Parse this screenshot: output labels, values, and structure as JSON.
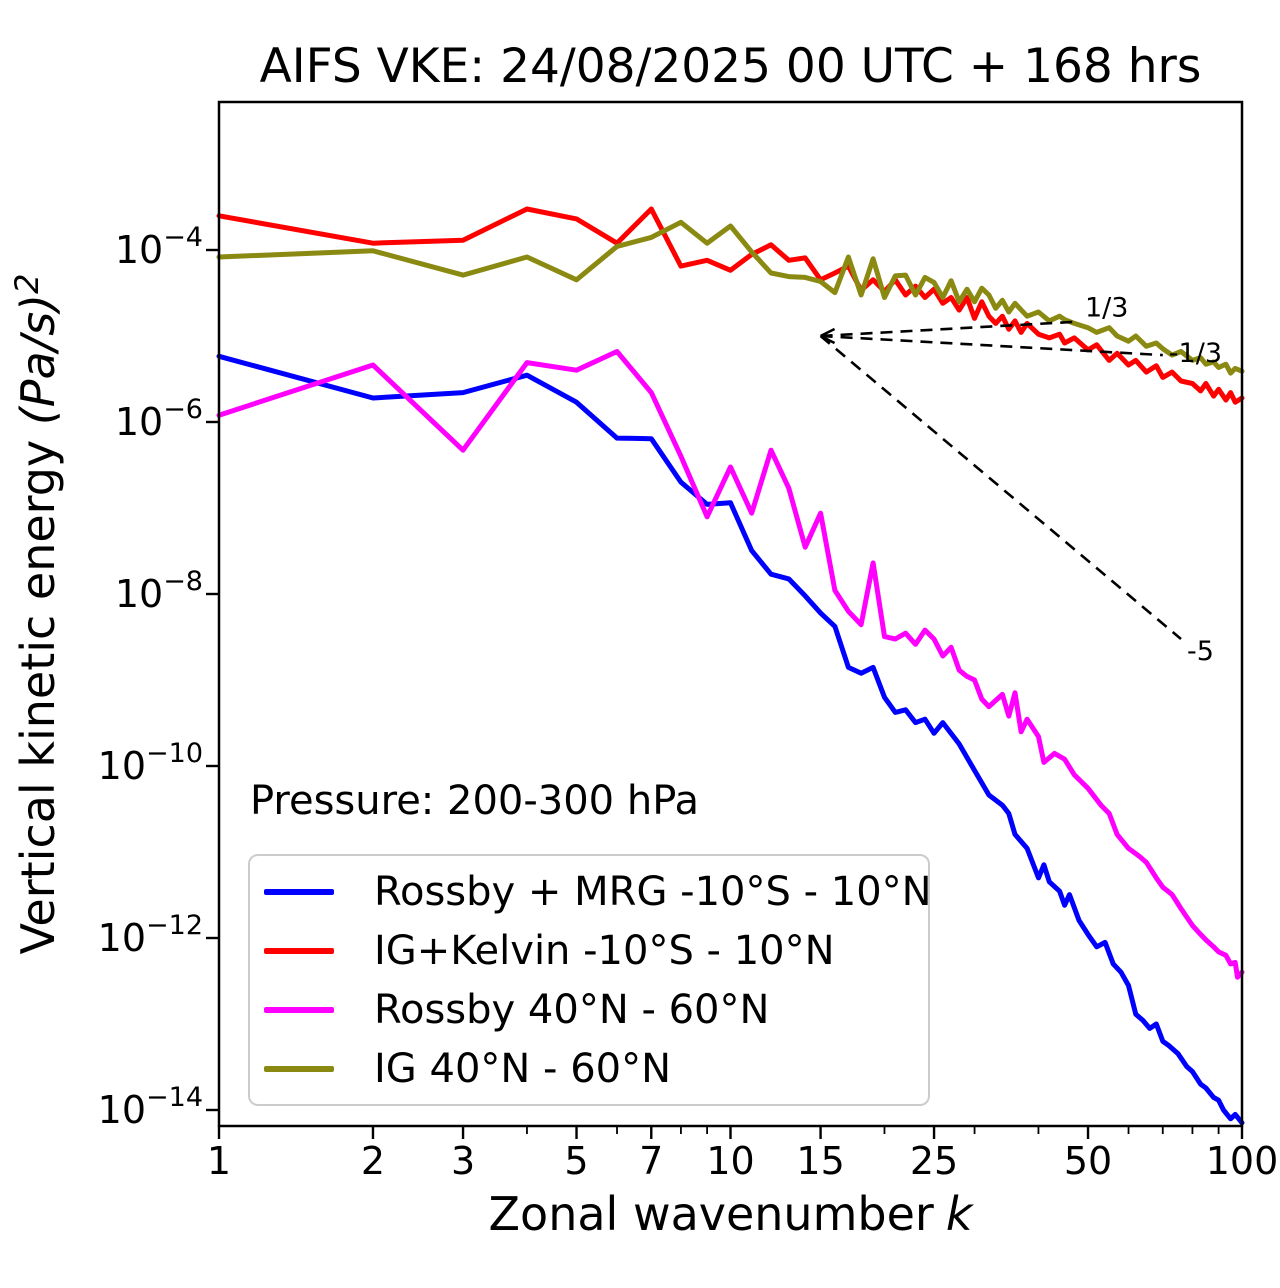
{
  "chart_data": {
    "type": "line",
    "title": "AIFS VKE: 24/08/2025 00 UTC + 168 hrs",
    "xlabel": {
      "text": "Zonal wavenumber",
      "symbol": "k"
    },
    "ylabel": {
      "text": "Vertical kinetic energy ",
      "math": "(Pa/s)",
      "exponent": "2"
    },
    "xscale": "log",
    "yscale": "log",
    "xlim": [
      1,
      100
    ],
    "ylim": [
      5e-15,
      0.005
    ],
    "grid": false,
    "legend_position": "lower-left",
    "x_ticks": [
      1,
      2,
      3,
      5,
      7,
      10,
      15,
      25,
      50,
      100
    ],
    "x_minor_ticks": [
      4,
      6,
      8,
      9,
      20,
      30,
      40,
      60,
      70,
      80,
      90
    ],
    "y_tick_exponents": [
      -4,
      -6,
      -8,
      -10,
      -12,
      -14
    ],
    "annotations": {
      "pressure_label": "Pressure: 200-300 hPa",
      "reference_slopes": [
        {
          "label": "1/3",
          "k": [
            15,
            48
          ],
          "value": [
            1e-05,
            1.47e-05
          ]
        },
        {
          "label": "-1/3",
          "k": [
            15,
            70
          ],
          "value": [
            1e-05,
            6e-06
          ]
        },
        {
          "label": "-5",
          "k": [
            15,
            76
          ],
          "value": [
            1e-05,
            3e-09
          ]
        }
      ]
    },
    "series": [
      {
        "name": "Rossby + MRG -10°S - 10°N",
        "color": "#0000ff",
        "x": [
          1,
          2,
          3,
          4,
          5,
          6,
          7,
          8,
          9,
          10,
          11,
          12,
          13,
          14,
          15,
          16,
          17,
          18,
          19,
          20,
          21,
          22,
          23,
          24,
          25,
          26,
          28,
          30,
          32,
          34,
          35,
          36,
          38,
          40,
          41,
          42,
          44,
          45,
          46,
          48,
          50,
          52,
          54,
          56,
          58,
          60,
          62,
          64,
          66,
          68,
          70,
          72,
          75,
          78,
          80,
          83,
          85,
          88,
          90,
          92,
          95,
          97,
          100
        ],
        "y": [
          5.8e-06,
          1.9e-06,
          2.2e-06,
          3.5e-06,
          1.7e-06,
          6.5e-07,
          6.4e-07,
          2e-07,
          1.1e-07,
          1.15e-07,
          3.2e-08,
          1.7e-08,
          1.5e-08,
          9.5e-09,
          6e-09,
          4.2e-09,
          1.4e-09,
          1.2e-09,
          1.4e-09,
          6.3e-10,
          4.2e-10,
          4.5e-10,
          3.2e-10,
          3.5e-10,
          2.4e-10,
          3.2e-10,
          1.8e-10,
          8.9e-11,
          4.6e-11,
          3.5e-11,
          2.8e-11,
          1.6e-11,
          1.1e-11,
          5e-12,
          7.1e-12,
          4.5e-12,
          3.5e-12,
          2.4e-12,
          3.2e-12,
          1.6e-12,
          1.1e-12,
          7.9e-13,
          8.9e-13,
          5e-13,
          4e-13,
          2.8e-13,
          1.3e-13,
          1.1e-13,
          8.9e-14,
          1e-13,
          6.3e-14,
          5.6e-14,
          4.5e-14,
          3.2e-14,
          2.8e-14,
          2e-14,
          1.8e-14,
          1.4e-14,
          1.3e-14,
          1e-14,
          7.9e-15,
          8.9e-15,
          7.1e-15
        ]
      },
      {
        "name": "IG+Kelvin -10°S - 10°N",
        "color": "#ff0000",
        "x": [
          1,
          2,
          3,
          4,
          5,
          6,
          7,
          8,
          9,
          10,
          11,
          12,
          13,
          14,
          15,
          16,
          17,
          18,
          19,
          20,
          21,
          22,
          23,
          24,
          25,
          26,
          27,
          28,
          29,
          30,
          31,
          32,
          33,
          34,
          35,
          36,
          37,
          38,
          40,
          42,
          44,
          45,
          47,
          50,
          52,
          55,
          57,
          60,
          62,
          65,
          68,
          70,
          73,
          76,
          80,
          83,
          85,
          88,
          90,
          93,
          95,
          97,
          100
        ],
        "y": [
          0.00025,
          0.00012,
          0.00013,
          0.0003,
          0.00023,
          0.00012,
          0.0003,
          6.5e-05,
          7.6e-05,
          5.8e-05,
          8.9e-05,
          0.000115,
          7.6e-05,
          8.1e-05,
          4.5e-05,
          5.4e-05,
          6.5e-05,
          3.4e-05,
          4.5e-05,
          3.3e-05,
          4.5e-05,
          3e-05,
          3.8e-05,
          2.8e-05,
          3.5e-05,
          2.4e-05,
          2.8e-05,
          2e-05,
          2.8e-05,
          1.6e-05,
          2.5e-05,
          1.7e-05,
          1.4e-05,
          1.7e-05,
          1.2e-05,
          1.5e-05,
          1.1e-05,
          1.4e-05,
          1.05e-05,
          9.5e-06,
          1.05e-05,
          8.3e-06,
          9.5e-06,
          6.9e-06,
          7.9e-06,
          5.2e-06,
          6.3e-06,
          4.6e-06,
          5.2e-06,
          3.8e-06,
          4.5e-06,
          3.3e-06,
          3.8e-06,
          3e-06,
          2.8e-06,
          2.3e-06,
          2.8e-06,
          2e-06,
          2.4e-06,
          1.8e-06,
          2.2e-06,
          1.7e-06,
          1.9e-06
        ]
      },
      {
        "name": "Rossby 40°N - 60°N",
        "color": "#ff00ff",
        "x": [
          1,
          2,
          3,
          4,
          5,
          6,
          7,
          8,
          9,
          10,
          11,
          12,
          13,
          14,
          15,
          16,
          17,
          18,
          19,
          20,
          21,
          22,
          23,
          24,
          25,
          26,
          27,
          28,
          29,
          30,
          31,
          32,
          34,
          35,
          36,
          37,
          38,
          40,
          41,
          43,
          45,
          47,
          50,
          53,
          55,
          57,
          60,
          63,
          65,
          68,
          70,
          73,
          76,
          80,
          83,
          85,
          88,
          90,
          93,
          95,
          97,
          98,
          100
        ],
        "y": [
          1.2e-06,
          4.6e-06,
          4.7e-07,
          4.9e-06,
          4e-06,
          6.6e-06,
          2.2e-06,
          4e-07,
          7.9e-08,
          3e-07,
          8.7e-08,
          4.7e-07,
          1.7e-07,
          3.5e-08,
          8.7e-08,
          1.1e-08,
          6.3e-09,
          4.4e-09,
          2.3e-08,
          3.2e-09,
          3e-09,
          3.5e-09,
          2.6e-09,
          3.8e-09,
          3e-09,
          1.9e-09,
          2.4e-09,
          1.3e-09,
          1.1e-09,
          1e-09,
          6e-10,
          4.9e-10,
          6.8e-10,
          3.8e-10,
          7.1e-10,
          2.5e-10,
          3.5e-10,
          2.2e-10,
          1.1e-10,
          1.4e-10,
          1.2e-10,
          7.9e-11,
          5.5e-11,
          3.5e-11,
          2.8e-11,
          1.6e-11,
          1.1e-11,
          8.9e-12,
          7.6e-12,
          5e-12,
          3.9e-12,
          3.2e-12,
          2.2e-12,
          1.4e-12,
          1.1e-12,
          9.5e-13,
          7.9e-13,
          6.9e-13,
          6.3e-13,
          5e-13,
          5.2e-13,
          3.5e-13,
          4e-13
        ]
      },
      {
        "name": "IG 40°N - 60°N",
        "color": "#8a8a12",
        "x": [
          1,
          2,
          3,
          4,
          5,
          6,
          7,
          8,
          9,
          10,
          11,
          12,
          13,
          14,
          15,
          16,
          17,
          18,
          19,
          20,
          21,
          22,
          23,
          24,
          25,
          26,
          27,
          28,
          29,
          30,
          31,
          32,
          33,
          34,
          35,
          36,
          38,
          40,
          42,
          44,
          45,
          47,
          50,
          52,
          55,
          57,
          60,
          62,
          65,
          68,
          70,
          73,
          76,
          80,
          83,
          85,
          88,
          90,
          93,
          95,
          97,
          100
        ],
        "y": [
          8.3e-05,
          9.8e-05,
          5.1e-05,
          8.3e-05,
          4.5e-05,
          0.00011,
          0.00014,
          0.00021,
          0.00012,
          0.00019,
          9.5e-05,
          5.4e-05,
          4.9e-05,
          4.8e-05,
          4.3e-05,
          3.2e-05,
          8.3e-05,
          3e-05,
          7.9e-05,
          2.8e-05,
          5e-05,
          5.1e-05,
          3e-05,
          4.8e-05,
          4.2e-05,
          2.8e-05,
          4.4e-05,
          2.5e-05,
          3.5e-05,
          2.5e-05,
          3.6e-05,
          3e-05,
          2.1e-05,
          2.6e-05,
          1.9e-05,
          2.4e-05,
          1.7e-05,
          1.9e-05,
          1.5e-05,
          1.7e-05,
          1.55e-05,
          1.4e-05,
          1.25e-05,
          1.1e-05,
          1.25e-05,
          1e-05,
          8.7e-06,
          1e-05,
          7.6e-06,
          8.3e-06,
          7.1e-06,
          6e-06,
          6.6e-06,
          5.2e-06,
          5.6e-06,
          4.7e-06,
          5e-06,
          4.3e-06,
          4.7e-06,
          3.7e-06,
          4.2e-06,
          3.9e-06
        ]
      }
    ]
  }
}
